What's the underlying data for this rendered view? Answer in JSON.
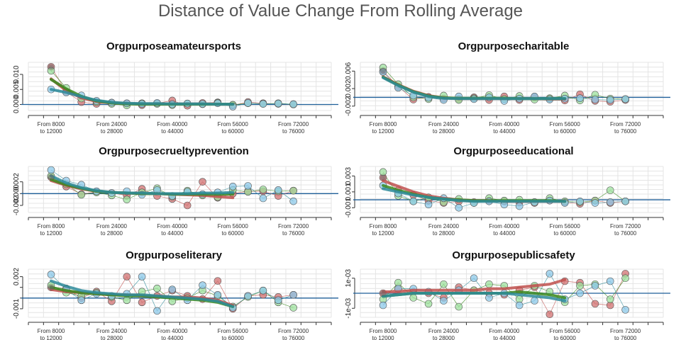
{
  "title": "Distance of Value Change From Rolling Average",
  "x_tick_labels": [
    [
      "From 8000",
      "to 12000"
    ],
    [
      "From 24000",
      "to 28000"
    ],
    [
      "From 40000",
      "to 44000"
    ],
    [
      "From 56000",
      "to 60000"
    ],
    [
      "From 72000",
      "to 76000"
    ]
  ],
  "colors": {
    "red": "#C0504D",
    "green": "#3A8A1E",
    "teal": "#2E8B9A",
    "blue_light": "#8CC8E8",
    "green_light": "#9EE09E",
    "red_light": "#D07070",
    "gray_point": "#666666",
    "refline": "#1F5F99",
    "grid": "#E4E4E4"
  },
  "chart_data": [
    {
      "type": "line",
      "title": "Orgpurposeamateursports",
      "x": [
        10000,
        14000,
        18000,
        22000,
        26000,
        30000,
        34000,
        38000,
        42000,
        46000,
        50000,
        54000,
        58000,
        62000,
        66000,
        70000,
        74000
      ],
      "ylim": [
        -0.002,
        0.014
      ],
      "yticks": [
        0.0,
        0.005,
        0.01
      ],
      "ytick_labels": [
        "0.000",
        "0.005",
        "0.010"
      ],
      "grid": true,
      "series": [
        {
          "color": "#C0504D",
          "points": [
            0.0125,
            0.0042,
            0.0008,
            0.0002,
            0.0006,
            0.0003,
            -0.0002,
            0.0004,
            0.0013,
            -0.0004,
            0.0005,
            0.0007,
            -0.0003,
            0.0008,
            0.0004,
            0.0002,
            0.0001
          ],
          "trend": [
            0.0085,
            0.0046,
            0.0022,
            0.001,
            0.0005,
            0.0003,
            0.0002,
            0.0002,
            0.0002,
            0.0002,
            0.0002,
            0.0001,
            0.0001
          ]
        },
        {
          "color": "#3A8A1E",
          "points": [
            0.0112,
            0.0055,
            0.002,
            0.0008,
            0.0002,
            -0.0003,
            0.0004,
            0.0002,
            -0.0002,
            0.0003,
            0.0001,
            0.0006,
            -0.0001,
            0.0004,
            0.0002,
            0.0004,
            0.0
          ],
          "trend": [
            0.0083,
            0.0052,
            0.0027,
            0.0012,
            0.0005,
            0.0002,
            0.0001,
            0.0001,
            0.0001,
            0.0001,
            0.0001,
            0.0001,
            0.0001
          ]
        },
        {
          "color": "#2E8B9A",
          "points": [
            0.005,
            0.004,
            0.003,
            0.0012,
            0.0006,
            0.0004,
            0.0002,
            0.0005,
            0.0001,
            0.0003,
            0.0002,
            0.0004,
            -0.0007,
            0.0005,
            0.0002,
            0.0003,
            0.0001
          ],
          "trend": [
            0.005,
            0.004,
            0.0026,
            0.0014,
            0.0007,
            0.0004,
            0.0003,
            0.0003,
            0.0002,
            0.0002,
            0.0002,
            0.0001,
            0.0001
          ]
        }
      ]
    },
    {
      "type": "line",
      "title": "Orgpurposecharitable",
      "x": [
        10000,
        14000,
        18000,
        22000,
        26000,
        30000,
        34000,
        38000,
        42000,
        46000,
        50000,
        54000,
        58000,
        62000,
        66000,
        70000,
        74000
      ],
      "ylim": [
        -0.003,
        0.008
      ],
      "yticks": [
        -0.002,
        0.002,
        0.006
      ],
      "ytick_labels": [
        "-0.002",
        "0.002",
        "0.006"
      ],
      "grid": true,
      "series": [
        {
          "color": "#C0504D",
          "points": [
            0.006,
            0.0025,
            -0.0005,
            0.0001,
            -0.0003,
            -0.0004,
            0.0,
            -0.0006,
            0.0002,
            -0.0006,
            0.0,
            -0.0003,
            -0.0007,
            0.0007,
            -0.0008,
            -0.001,
            -0.0006
          ],
          "trend": [
            0.0047,
            0.0029,
            0.0014,
            0.0004,
            -0.0001,
            -0.0003,
            -0.0003,
            -0.0003,
            -0.0003,
            -0.0003,
            -0.0003,
            -0.0004,
            -0.0004
          ]
        },
        {
          "color": "#3A8A1E",
          "points": [
            0.0068,
            0.003,
            0.0,
            -0.0004,
            0.0004,
            -0.0006,
            -0.0002,
            0.0005,
            -0.0004,
            0.0003,
            -0.0005,
            -0.0002,
            0.0004,
            -0.0007,
            0.0006,
            -0.0003,
            -0.0004
          ],
          "trend": [
            0.0046,
            0.0028,
            0.0013,
            0.0003,
            -0.0001,
            -0.0002,
            -0.0002,
            -0.0002,
            -0.0002,
            -0.0003,
            -0.0003,
            -0.0003,
            -0.0003
          ]
        },
        {
          "color": "#2E8B9A",
          "points": [
            0.0058,
            0.0022,
            0.0004,
            -0.0001,
            -0.0006,
            0.0002,
            -0.0004,
            0.0,
            -0.0008,
            -0.0003,
            0.0002,
            -0.0005,
            -0.0003,
            -0.0002,
            -0.0005,
            -0.0006,
            -0.0004
          ],
          "trend": [
            0.0045,
            0.0027,
            0.0012,
            0.0002,
            -0.0002,
            -0.0003,
            -0.0003,
            -0.0003,
            -0.0003,
            -0.0003,
            -0.0003,
            -0.0003,
            -0.0003
          ]
        }
      ]
    },
    {
      "type": "line",
      "title": "Orgpurposecrueltyprevention",
      "x": [
        10000,
        14000,
        18000,
        22000,
        26000,
        30000,
        34000,
        38000,
        42000,
        46000,
        50000,
        54000,
        58000,
        62000,
        66000,
        70000,
        74000
      ],
      "ylim": [
        -0.0032,
        0.0046
      ],
      "yticks": [
        -0.002,
        0.0,
        0.002
      ],
      "ytick_labels": [
        "-0.002",
        "0.000",
        "0.002"
      ],
      "grid": true,
      "series": [
        {
          "color": "#C0504D",
          "points": [
            0.0028,
            0.0012,
            -0.0001,
            0.0003,
            0.0001,
            -0.0003,
            0.0008,
            -0.0004,
            -0.0009,
            -0.002,
            0.002,
            -0.0007,
            0.0,
            0.0004,
            0.0004,
            -0.0004,
            0.0005
          ],
          "trend": [
            0.0022,
            0.0014,
            0.0008,
            0.0004,
            0.0002,
            0.0001,
            0.0,
            0.0,
            -0.0001,
            -0.0002,
            -0.0003,
            -0.0005,
            -0.0007
          ]
        },
        {
          "color": "#3A8A1E",
          "points": [
            0.003,
            0.0016,
            -0.0002,
            0.0002,
            -0.0003,
            -0.001,
            0.0002,
            0.0009,
            -0.0005,
            0.0005,
            -0.0003,
            -0.0006,
            0.0006,
            0.0003,
            0.0007,
            0.0004,
            0.0005
          ],
          "trend": [
            0.0024,
            0.0015,
            0.0009,
            0.0004,
            0.0002,
            0.0001,
            0.0,
            0.0,
            -0.0001,
            -0.0001,
            -0.0001,
            -0.0001,
            -0.0001
          ]
        },
        {
          "color": "#2E8B9A",
          "points": [
            0.004,
            0.0022,
            0.0015,
            0.0004,
            0.0001,
            0.0004,
            -0.0002,
            0.0006,
            -0.0004,
            0.0003,
            -0.0001,
            0.0002,
            0.0012,
            0.0013,
            -0.0008,
            0.0006,
            -0.0013
          ],
          "trend": [
            0.003,
            0.0018,
            0.001,
            0.0005,
            0.0002,
            0.0001,
            0.0001,
            0.0,
            0.0,
            0.0,
            0.0001,
            0.0001,
            0.0002
          ]
        }
      ]
    },
    {
      "type": "line",
      "title": "Orgpurposeeducational",
      "x": [
        10000,
        14000,
        18000,
        22000,
        26000,
        30000,
        34000,
        38000,
        42000,
        46000,
        50000,
        54000,
        58000,
        62000,
        66000,
        70000,
        74000
      ],
      "ylim": [
        -0.0016,
        0.0042
      ],
      "yticks": [
        -0.001,
        0.001,
        0.003
      ],
      "ytick_labels": [
        "-0.001",
        "0.001",
        "0.003"
      ],
      "grid": true,
      "series": [
        {
          "color": "#C0504D",
          "points": [
            0.0028,
            0.0012,
            0.0006,
            -0.0001,
            -0.0004,
            -0.0002,
            -0.0003,
            -0.0001,
            -0.0002,
            -0.0003,
            -0.0004,
            -0.0001,
            -0.0003,
            -0.0005,
            -0.0001,
            -0.0004,
            -0.0002
          ],
          "trend": [
            0.0024,
            0.0017,
            0.001,
            0.0005,
            0.0002,
            0.0,
            -0.0001,
            -0.0001,
            -0.0002,
            -0.0002,
            -0.0002,
            -0.0002,
            -0.0002
          ]
        },
        {
          "color": "#3A8A1E",
          "points": [
            0.0035,
            0.0005,
            -0.0002,
            0.0003,
            -0.0003,
            0.0001,
            -0.0004,
            0.0002,
            -0.0001,
            0.0,
            -0.0003,
            0.0002,
            -0.0002,
            -0.0003,
            -0.0001,
            0.0012,
            -0.0002
          ],
          "trend": [
            0.0018,
            0.0012,
            0.0007,
            0.0003,
            0.0001,
            0.0,
            -0.0001,
            -0.0001,
            -0.0001,
            -0.0001,
            -0.0001,
            -0.0001,
            -0.0002
          ]
        },
        {
          "color": "#2E8B9A",
          "points": [
            0.0018,
            0.0008,
            -0.0002,
            -0.0006,
            0.0002,
            -0.001,
            -0.0004,
            -0.0002,
            -0.0006,
            -0.0008,
            -0.0003,
            -0.0001,
            -0.0004,
            -0.0002,
            -0.0004,
            -0.0003,
            -0.0002
          ],
          "trend": [
            0.0014,
            0.001,
            0.0006,
            0.0003,
            0.0001,
            -0.0001,
            -0.0002,
            -0.0002,
            -0.0002,
            -0.0002,
            -0.0002,
            -0.0002,
            -0.0002
          ]
        }
      ]
    },
    {
      "type": "line",
      "title": "Orgpurposeliterary",
      "x": [
        10000,
        14000,
        18000,
        22000,
        26000,
        30000,
        34000,
        38000,
        42000,
        46000,
        50000,
        54000,
        58000,
        62000,
        66000,
        70000,
        74000
      ],
      "ylim": [
        -0.0018,
        0.0027
      ],
      "yticks": [
        -0.001,
        0.0,
        0.001,
        0.002
      ],
      "ytick_labels": [
        "-0.001",
        "",
        "",
        "0.002"
      ],
      "grid": true,
      "series": [
        {
          "color": "#C0504D",
          "points": [
            0.001,
            0.0009,
            0.0,
            0.0006,
            -0.0003,
            0.002,
            -0.0004,
            0.0002,
            0.0007,
            0.0002,
            -0.0001,
            0.0016,
            -0.001,
            0.0002,
            0.0003,
            0.0001,
            0.0003
          ],
          "trend": [
            0.0008,
            0.0006,
            0.0005,
            0.0004,
            0.0003,
            0.0003,
            0.0002,
            0.0002,
            0.0001,
            0.0001,
            0.0,
            -0.0002,
            -0.0007
          ]
        },
        {
          "color": "#3A8A1E",
          "points": [
            0.0012,
            0.0005,
            0.0002,
            0.0005,
            0.0001,
            -0.0002,
            0.0006,
            0.0009,
            -0.0003,
            0.0,
            0.0007,
            0.0002,
            -0.0008,
            0.0001,
            0.0007,
            -0.0004,
            -0.0009
          ],
          "trend": [
            0.001,
            0.0007,
            0.0005,
            0.0004,
            0.0003,
            0.0002,
            0.0002,
            0.0001,
            0.0,
            -0.0001,
            -0.0002,
            -0.0004,
            -0.0008
          ]
        },
        {
          "color": "#2E8B9A",
          "points": [
            0.0022,
            0.0008,
            -0.0002,
            0.0004,
            0.0002,
            0.0004,
            0.002,
            -0.0012,
            0.0008,
            -0.0002,
            0.0012,
            0.0003,
            -0.0009,
            0.0002,
            0.0007,
            -0.0002,
            0.0003
          ],
          "trend": [
            0.0016,
            0.0011,
            0.0007,
            0.0005,
            0.0004,
            0.0003,
            0.0003,
            0.0002,
            0.0001,
            0.0,
            -0.0001,
            -0.0003,
            -0.0008
          ]
        }
      ]
    },
    {
      "type": "line",
      "title": "Orgpurposepublicsafety",
      "x": [
        10000,
        14000,
        18000,
        22000,
        26000,
        30000,
        34000,
        38000,
        42000,
        46000,
        50000,
        54000,
        58000,
        62000,
        66000,
        70000,
        74000
      ],
      "ylim": [
        -0.0016,
        0.0016
      ],
      "yticks": [
        -0.001,
        0.001
      ],
      "ytick_labels": [
        "-1e-03",
        "1e-03"
      ],
      "grid": true,
      "series": [
        {
          "color": "#C0504D",
          "points": [
            0.0,
            0.0003,
            0.0001,
            0.0,
            -0.0003,
            0.0004,
            0.0002,
            0.0,
            -0.0001,
            0.0002,
            0.0004,
            -0.0014,
            0.0008,
            0.0007,
            -0.0007,
            -0.0008,
            0.0013
          ],
          "trend": [
            0.0001,
            0.0001,
            0.0002,
            0.0002,
            0.0002,
            0.0002,
            0.0002,
            0.0003,
            0.0003,
            0.0004,
            0.0005,
            0.0006,
            0.0009
          ]
        },
        {
          "color": "#3A8A1E",
          "points": [
            -0.0004,
            0.0007,
            -0.0003,
            -0.0007,
            0.0006,
            -0.0009,
            0.0002,
            0.0006,
            0.0005,
            -0.0004,
            0.0005,
            0.0001,
            -0.0006,
            0.0005,
            0.0006,
            -0.0004,
            0.001
          ],
          "trend": [
            -0.0002,
            -0.0001,
            0.0,
            0.0,
            0.0,
            0.0,
            0.0,
            0.0,
            0.0,
            0.0001,
            0.0,
            -0.0001,
            -0.0003
          ]
        },
        {
          "color": "#2E8B9A",
          "points": [
            -0.0008,
            0.0003,
            0.0003,
            0.0001,
            -0.0005,
            0.0002,
            0.001,
            -0.0003,
            0.0,
            -0.0008,
            -0.0005,
            0.0013,
            -0.0004,
            0.0,
            0.0005,
            0.0008,
            -0.0011
          ],
          "trend": [
            -0.0002,
            -0.0001,
            0.0,
            0.0,
            0.0,
            0.0,
            0.0,
            0.0,
            0.0,
            -0.0001,
            -0.0002,
            -0.0003,
            -0.0005
          ]
        }
      ]
    }
  ]
}
